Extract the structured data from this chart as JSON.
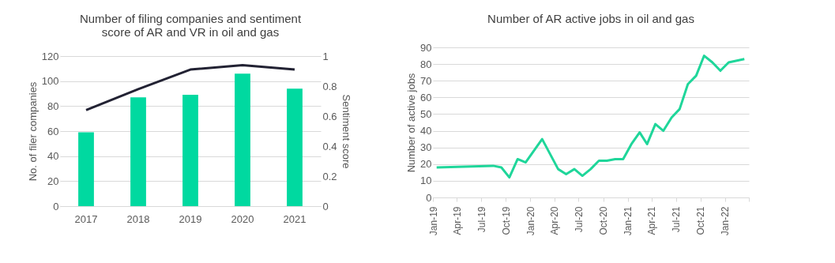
{
  "chart_data": [
    {
      "type": "bar",
      "title": "Number of filing companies and sentiment score of AR and VR in oil and gas",
      "categories": [
        "2017",
        "2018",
        "2019",
        "2020",
        "2021"
      ],
      "series": [
        {
          "type": "bar",
          "color": "#00d9a0",
          "values": [
            59,
            87,
            89,
            106,
            94
          ]
        },
        {
          "type": "line",
          "color": "#222233",
          "axis": "y2",
          "values": [
            0.64,
            0.78,
            0.91,
            0.94,
            0.91
          ]
        }
      ],
      "ylabel": "No. of filer companies",
      "y2label": "Sentiment score",
      "ylim": [
        0,
        120
      ],
      "yticks": [
        0,
        20,
        40,
        60,
        80,
        100,
        120
      ],
      "y2lim": [
        0,
        1
      ],
      "y2ticks": [
        0,
        0.2,
        0.4,
        0.6,
        0.8,
        1
      ],
      "grid": "y"
    },
    {
      "type": "line",
      "title": "Number of AR active jobs in oil and gas",
      "ylabel": "Number of active jobs",
      "x": [
        "2019-01-15",
        "2019-08-15",
        "2019-09-15",
        "2019-10-15",
        "2019-11-15",
        "2019-12-15",
        "2020-02-15",
        "2020-04-15",
        "2020-05-15",
        "2020-06-15",
        "2020-07-15",
        "2020-08-15",
        "2020-09-15",
        "2020-10-15",
        "2020-11-15",
        "2020-12-15",
        "2021-01-15",
        "2021-02-15",
        "2021-03-15",
        "2021-04-15",
        "2021-05-15",
        "2021-06-15",
        "2021-07-15",
        "2021-08-15",
        "2021-09-15",
        "2021-10-15",
        "2021-11-15",
        "2021-12-15",
        "2022-01-15",
        "2022-03-15"
      ],
      "series": [
        {
          "color": "#1fd69a",
          "values": [
            18,
            19,
            18,
            12,
            23,
            21,
            35,
            17,
            14,
            17,
            13,
            17,
            22,
            22,
            23,
            23,
            32,
            39,
            32,
            44,
            40,
            48,
            53,
            68,
            73,
            85,
            81,
            76,
            81,
            83
          ]
        }
      ],
      "xlim": [
        "2019-01",
        "2022-04"
      ],
      "xticks": [
        {
          "value": "2019-01",
          "label": "Jan-19"
        },
        {
          "value": "2019-04",
          "label": "Apr-19"
        },
        {
          "value": "2019-07",
          "label": "Jul-19"
        },
        {
          "value": "2019-10",
          "label": "Oct-19"
        },
        {
          "value": "2020-01",
          "label": "Jan-20"
        },
        {
          "value": "2020-04",
          "label": "Apr-20"
        },
        {
          "value": "2020-07",
          "label": "Jul-20"
        },
        {
          "value": "2020-10",
          "label": "Oct-20"
        },
        {
          "value": "2021-01",
          "label": "Jan-21"
        },
        {
          "value": "2021-04",
          "label": "Apr-21"
        },
        {
          "value": "2021-07",
          "label": "Jul-21"
        },
        {
          "value": "2021-10",
          "label": "Oct-21"
        },
        {
          "value": "2022-01",
          "label": "Jan-22"
        },
        {
          "value": "2022-04",
          "label": null
        }
      ],
      "ylim": [
        0,
        90
      ],
      "yticks": [
        0,
        10,
        20,
        30,
        40,
        50,
        60,
        70,
        80,
        90
      ],
      "grid": "y"
    }
  ]
}
